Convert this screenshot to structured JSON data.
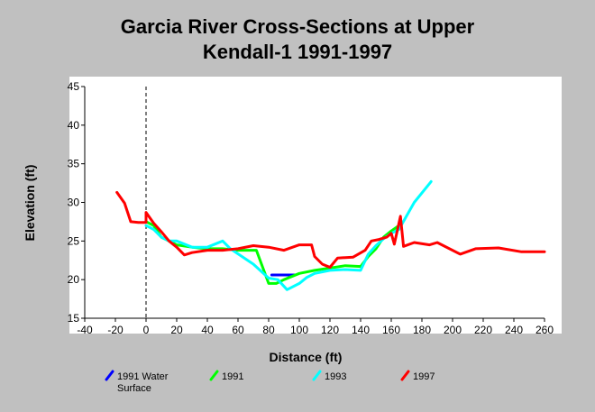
{
  "chart_data": {
    "type": "line",
    "title_lines": [
      "Garcia River Cross-Sections at Upper",
      "Kendall-1 1991-1997"
    ],
    "xlabel": "Distance (ft)",
    "ylabel": "Elevation (ft)",
    "xlim": [
      -40,
      260
    ],
    "ylim": [
      15,
      45
    ],
    "xticks": [
      -40,
      -20,
      0,
      20,
      40,
      60,
      80,
      100,
      120,
      140,
      160,
      180,
      200,
      220,
      240,
      260
    ],
    "yticks": [
      15,
      20,
      25,
      30,
      35,
      40,
      45
    ],
    "reference_line_x": 0,
    "grid": false,
    "legend_position": "bottom",
    "series": [
      {
        "name": "1991 Water Surface",
        "name_lines": [
          "1991 Water",
          "Surface"
        ],
        "color": "#0000ff",
        "points": [
          [
            82,
            20.6
          ],
          [
            97,
            20.6
          ]
        ]
      },
      {
        "name": "1991",
        "color": "#00ff00",
        "points": [
          [
            0,
            27.5
          ],
          [
            5,
            27
          ],
          [
            10,
            25.5
          ],
          [
            15,
            25
          ],
          [
            20,
            24.5
          ],
          [
            30,
            24.2
          ],
          [
            40,
            24
          ],
          [
            50,
            24
          ],
          [
            60,
            23.8
          ],
          [
            72,
            23.8
          ],
          [
            80,
            19.5
          ],
          [
            85,
            19.5
          ],
          [
            90,
            20
          ],
          [
            100,
            20.8
          ],
          [
            110,
            21.2
          ],
          [
            120,
            21.5
          ],
          [
            130,
            21.8
          ],
          [
            140,
            21.7
          ],
          [
            145,
            23
          ],
          [
            150,
            24
          ],
          [
            155,
            25.5
          ],
          [
            160,
            26.3
          ],
          [
            165,
            27
          ]
        ]
      },
      {
        "name": "1993",
        "color": "#00ffff",
        "points": [
          [
            0,
            27
          ],
          [
            5,
            26.5
          ],
          [
            10,
            25.5
          ],
          [
            15,
            25
          ],
          [
            20,
            25
          ],
          [
            30,
            24.2
          ],
          [
            40,
            24.2
          ],
          [
            50,
            25
          ],
          [
            55,
            24
          ],
          [
            70,
            22
          ],
          [
            80,
            20.2
          ],
          [
            86,
            20
          ],
          [
            92,
            18.7
          ],
          [
            100,
            19.5
          ],
          [
            105,
            20.3
          ],
          [
            110,
            20.8
          ],
          [
            120,
            21.2
          ],
          [
            130,
            21.3
          ],
          [
            140,
            21.2
          ],
          [
            145,
            23.3
          ],
          [
            150,
            24.4
          ],
          [
            155,
            25.3
          ],
          [
            160,
            26
          ],
          [
            165,
            26.5
          ],
          [
            175,
            30
          ],
          [
            186,
            32.7
          ]
        ]
      },
      {
        "name": "1997",
        "color": "#ff0000",
        "points": [
          [
            -19,
            31.3
          ],
          [
            -14,
            29.9
          ],
          [
            -10,
            27.5
          ],
          [
            -5,
            27.4
          ],
          [
            0,
            27.4
          ],
          [
            0,
            28.7
          ],
          [
            5,
            27.3
          ],
          [
            10,
            26.2
          ],
          [
            15,
            25
          ],
          [
            20,
            24.2
          ],
          [
            25,
            23.2
          ],
          [
            30,
            23.5
          ],
          [
            40,
            23.8
          ],
          [
            50,
            23.8
          ],
          [
            60,
            24
          ],
          [
            70,
            24.4
          ],
          [
            80,
            24.2
          ],
          [
            90,
            23.8
          ],
          [
            100,
            24.5
          ],
          [
            108,
            24.5
          ],
          [
            110,
            23
          ],
          [
            115,
            22
          ],
          [
            120,
            21.6
          ],
          [
            125,
            22.8
          ],
          [
            135,
            22.9
          ],
          [
            143,
            23.8
          ],
          [
            147,
            25
          ],
          [
            152,
            25.2
          ],
          [
            157,
            25.5
          ],
          [
            160,
            26
          ],
          [
            162,
            24.6
          ],
          [
            166,
            28.2
          ],
          [
            168,
            24.3
          ],
          [
            175,
            24.8
          ],
          [
            185,
            24.5
          ],
          [
            190,
            24.8
          ],
          [
            205,
            23.3
          ],
          [
            215,
            24
          ],
          [
            230,
            24.1
          ],
          [
            245,
            23.6
          ],
          [
            260,
            23.6
          ]
        ]
      }
    ]
  }
}
